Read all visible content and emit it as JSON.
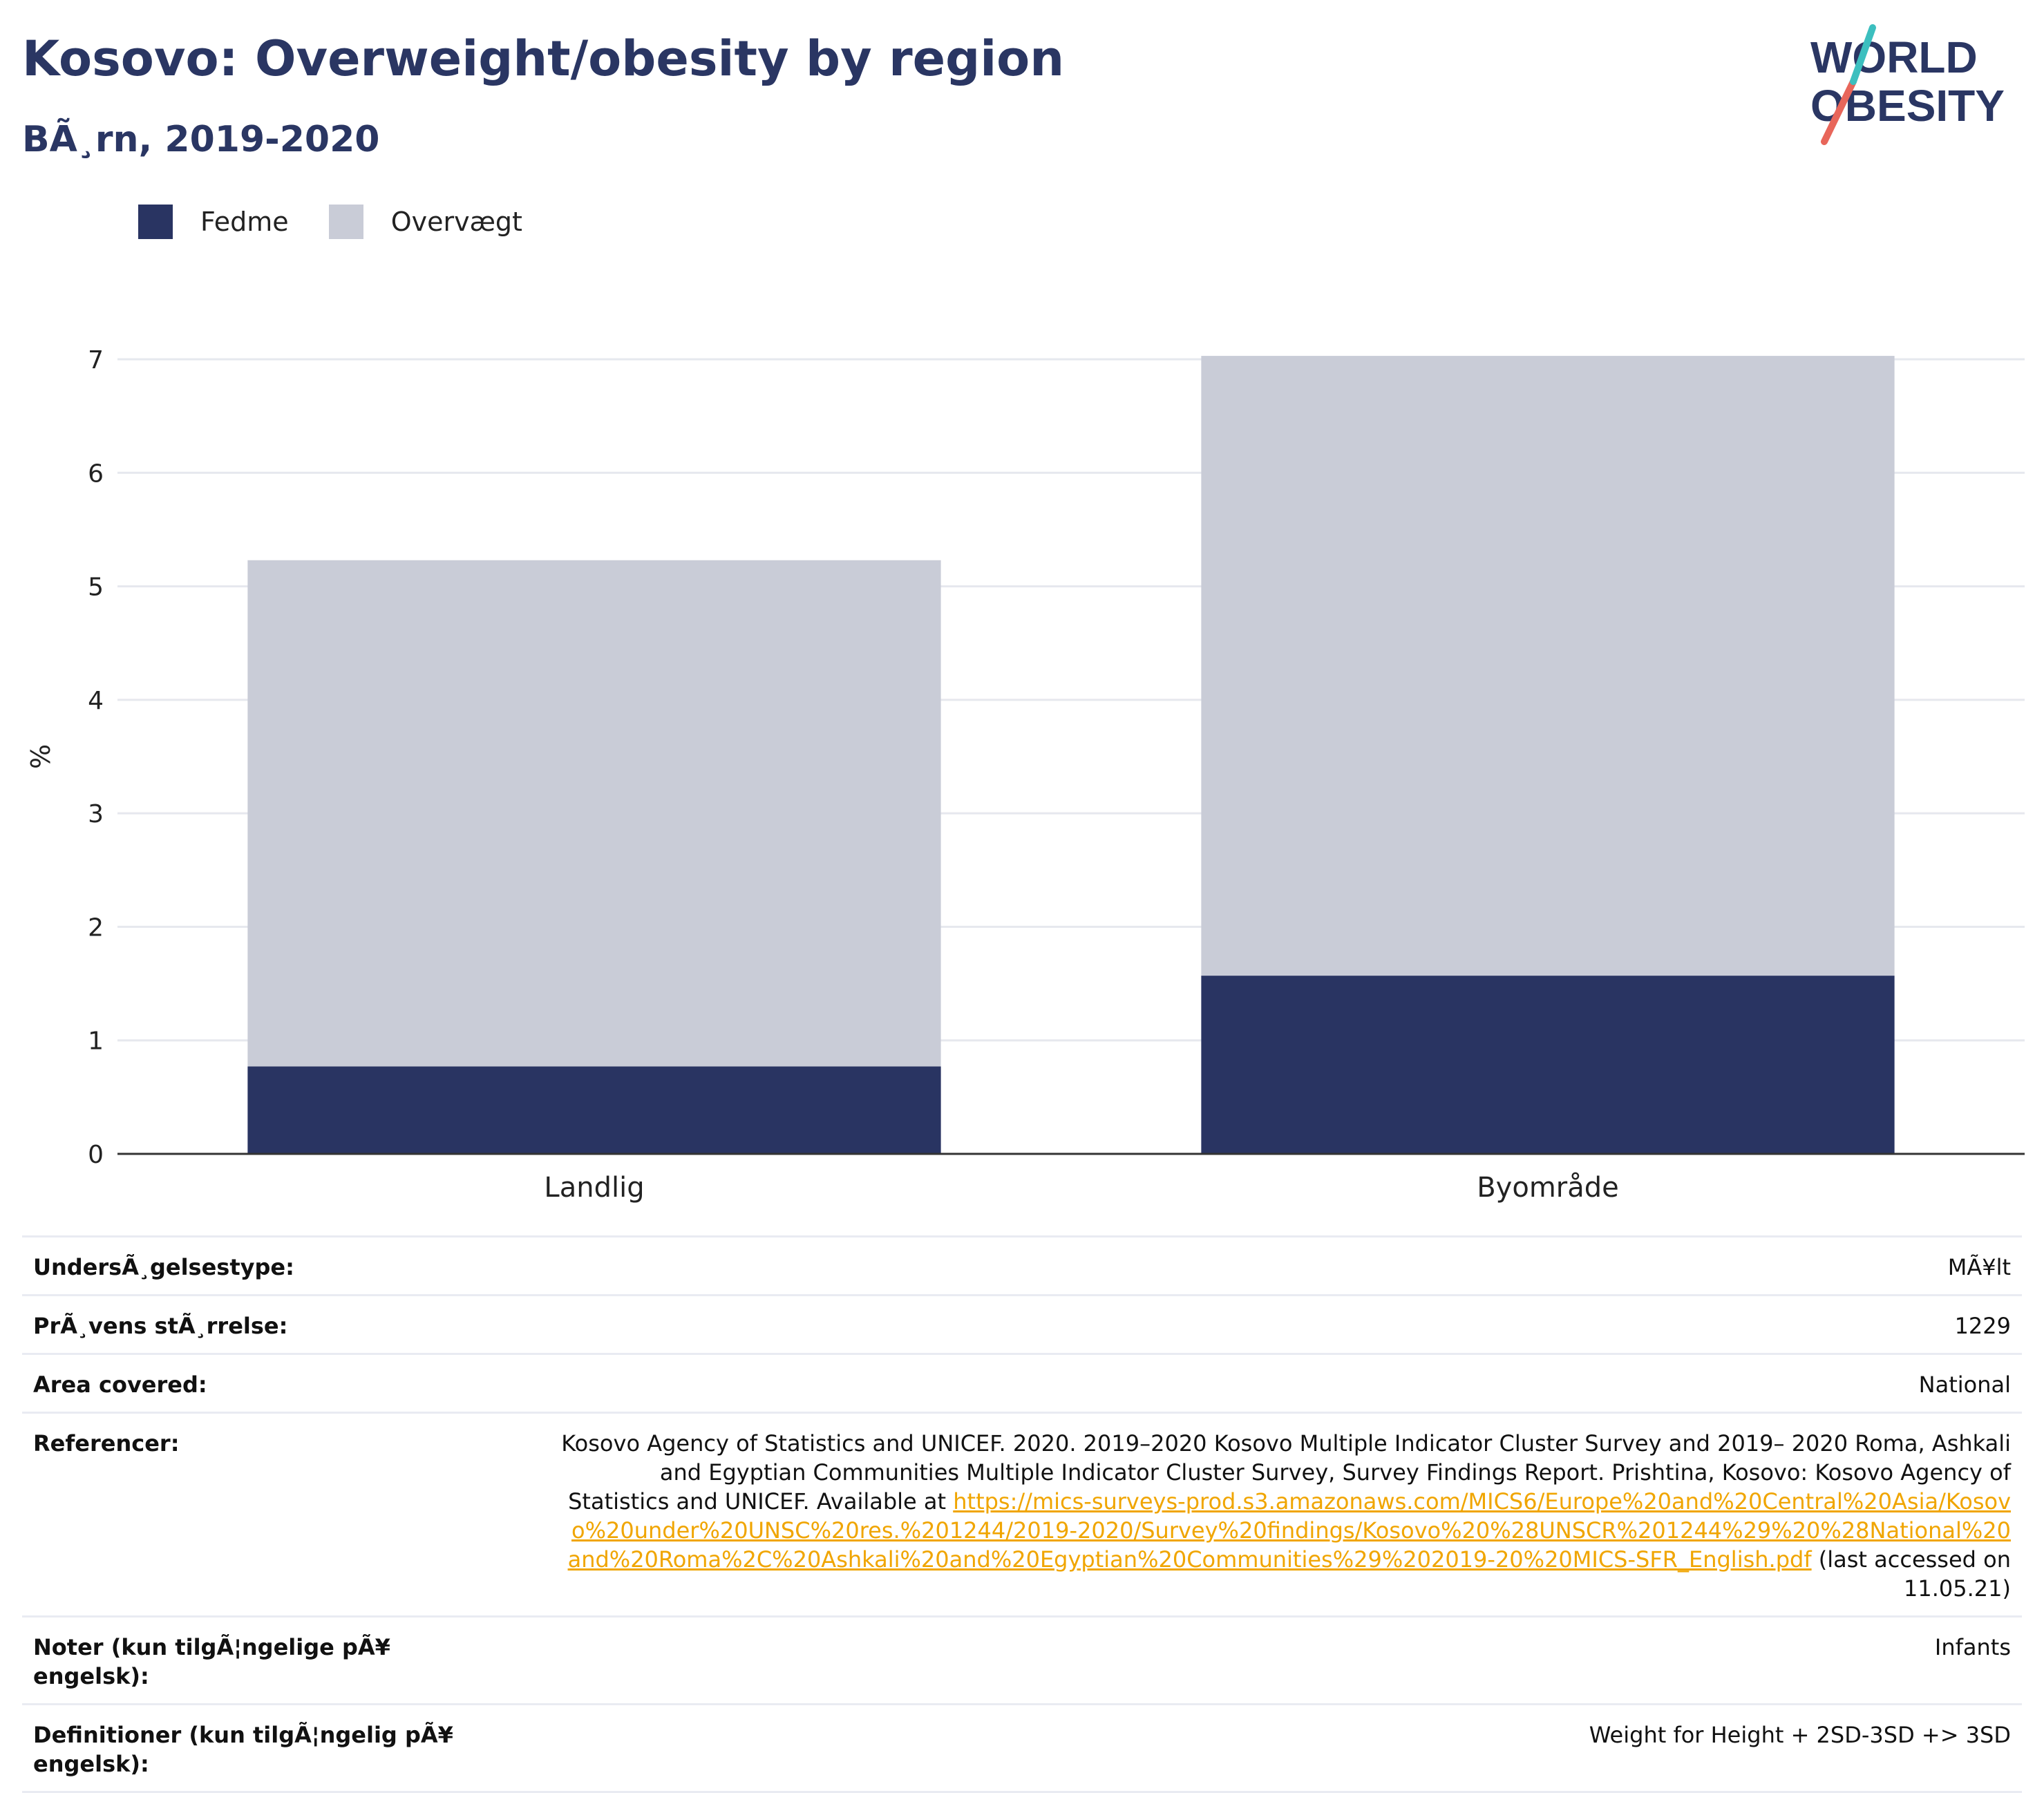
{
  "header": {
    "title": "Kosovo: Overweight/obesity by region",
    "subtitle": "BÃ¸rn, 2019-2020",
    "logo_line1": "WORLD",
    "logo_line2": "OBESITY"
  },
  "legend": [
    {
      "label": "Fedme",
      "color": "#293462"
    },
    {
      "label": "Overvægt",
      "color": "#c9ccd7"
    }
  ],
  "chart_data": {
    "type": "bar",
    "stacked": true,
    "categories": [
      "Landlig",
      "Byområde"
    ],
    "series": [
      {
        "name": "Fedme",
        "values": [
          0.77,
          1.57
        ],
        "color": "#293462"
      },
      {
        "name": "Overvægt",
        "values": [
          4.46,
          5.46
        ],
        "color": "#c9ccd7"
      }
    ],
    "ylabel": "%",
    "ylim": [
      0,
      7
    ],
    "yticks": [
      "0",
      "1",
      "2",
      "3",
      "4",
      "5",
      "6",
      "7"
    ],
    "grid": true
  },
  "info": [
    {
      "key": "UndersÃ¸gelsestype:",
      "value": "MÃ¥lt"
    },
    {
      "key": "PrÃ¸vens stÃ¸rrelse:",
      "value": "1229"
    },
    {
      "key": "Area covered:",
      "value": "National"
    },
    {
      "key": "Referencer:",
      "value_text": "Kosovo Agency of Statistics and UNICEF. 2020. 2019–2020 Kosovo Multiple Indicator Cluster Survey and 2019– 2020 Roma, Ashkali and Egyptian Communities Multiple Indicator Cluster Survey, Survey Findings Report. Prishtina, Kosovo: Kosovo Agency of Statistics and UNICEF. Available at ",
      "link": "https://mics-surveys-prod.s3.amazonaws.com/MICS6/Europe%20and%20Central%20Asia/Kosovo%20under%20UNSC%20res.%201244/2019-2020/Survey%20findings/Kosovo%20%28UNSCR%201244%29%20%28National%20and%20Roma%2C%20Ashkali%20and%20Egyptian%20Communities%29%202019-20%20MICS-SFR_English.pdf",
      "suffix": " (last accessed on 11.05.21)"
    },
    {
      "key": "Noter (kun tilgÃ¦ngelige pÃ¥ engelsk):",
      "value": "Infants"
    },
    {
      "key": "Definitioner (kun tilgÃ¦ngelig pÃ¥ engelsk):",
      "value": "Weight for Height + 2SD-3SD +> 3SD"
    }
  ]
}
